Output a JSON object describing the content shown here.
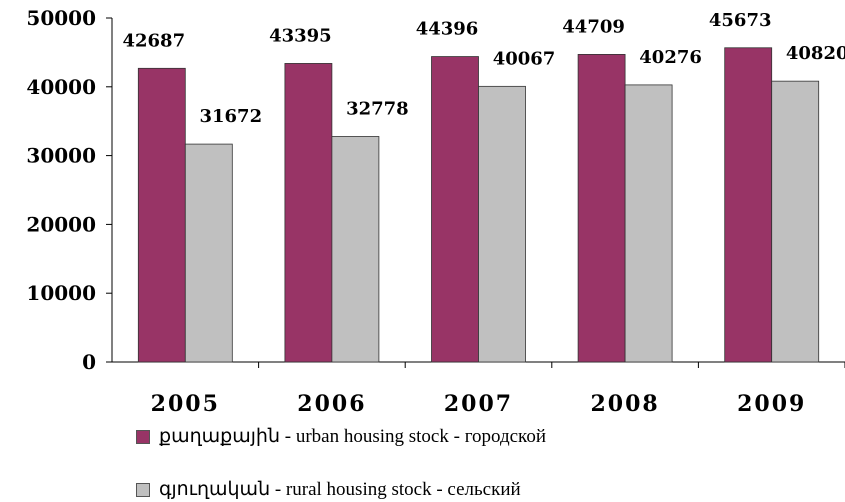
{
  "chart_data": {
    "type": "bar",
    "categories": [
      "2005",
      "2006",
      "2007",
      "2008",
      "2009"
    ],
    "series": [
      {
        "name": "քաղաքային - urban housing stock - городской",
        "color": "#983466",
        "values": [
          42687,
          43395,
          44396,
          44709,
          45673
        ]
      },
      {
        "name": "գյուղական - rural housing stock - сельский",
        "color": "#c0c0c0",
        "values": [
          31672,
          32778,
          40067,
          40276,
          40820
        ]
      }
    ],
    "ylim": [
      0,
      50000
    ],
    "yticks": [
      "0",
      "10000",
      "20000",
      "30000",
      "40000",
      "50000"
    ],
    "grid": false,
    "legend_position": "bottom"
  }
}
